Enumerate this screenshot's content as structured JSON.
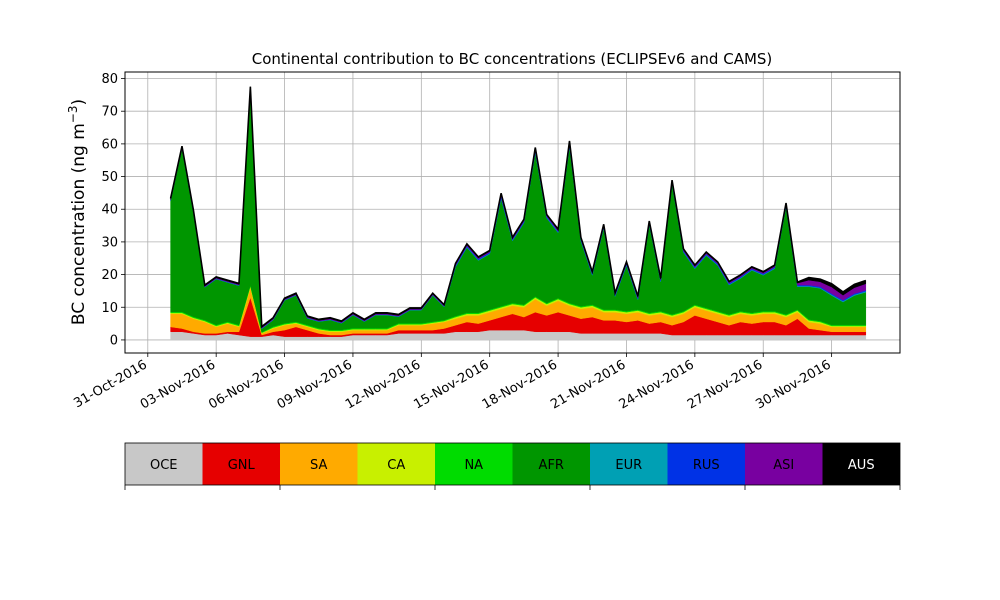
{
  "chart_data": {
    "type": "area",
    "stacked": true,
    "title": "Continental contribution to BC concentrations (ECLIPSEv6 and CAMS)",
    "xlabel": "",
    "ylabel": "BC concentration (ng m",
    "ylabel_superscript": "−3",
    "ylabel_suffix": ")",
    "ylim": [
      -4,
      82
    ],
    "yticks": [
      0,
      10,
      20,
      30,
      40,
      50,
      60,
      70,
      80
    ],
    "x_range": [
      "2016-10-30",
      "2016-12-03"
    ],
    "xtick_dates": [
      "2016-10-31",
      "2016-11-03",
      "2016-11-06",
      "2016-11-09",
      "2016-11-12",
      "2016-11-15",
      "2016-11-18",
      "2016-11-21",
      "2016-11-24",
      "2016-11-27",
      "2016-11-30"
    ],
    "xtick_labels": [
      "31-Oct-2016",
      "03-Nov-2016",
      "06-Nov-2016",
      "09-Nov-2016",
      "12-Nov-2016",
      "15-Nov-2016",
      "18-Nov-2016",
      "21-Nov-2016",
      "24-Nov-2016",
      "27-Nov-2016",
      "30-Nov-2016"
    ],
    "grid": true,
    "x": [
      "2016-11-01",
      "2016-11-01 12:00",
      "2016-11-02",
      "2016-11-02 12:00",
      "2016-11-03",
      "2016-11-03 12:00",
      "2016-11-04",
      "2016-11-04 12:00",
      "2016-11-05",
      "2016-11-05 12:00",
      "2016-11-06",
      "2016-11-06 12:00",
      "2016-11-07",
      "2016-11-07 12:00",
      "2016-11-08",
      "2016-11-08 12:00",
      "2016-11-09",
      "2016-11-09 12:00",
      "2016-11-10",
      "2016-11-10 12:00",
      "2016-11-11",
      "2016-11-11 12:00",
      "2016-11-12",
      "2016-11-12 12:00",
      "2016-11-13",
      "2016-11-13 12:00",
      "2016-11-14",
      "2016-11-14 12:00",
      "2016-11-15",
      "2016-11-15 12:00",
      "2016-11-16",
      "2016-11-16 12:00",
      "2016-11-17",
      "2016-11-17 12:00",
      "2016-11-18",
      "2016-11-18 12:00",
      "2016-11-19",
      "2016-11-19 12:00",
      "2016-11-20",
      "2016-11-20 12:00",
      "2016-11-21",
      "2016-11-21 12:00",
      "2016-11-22",
      "2016-11-22 12:00",
      "2016-11-23",
      "2016-11-23 12:00",
      "2016-11-24",
      "2016-11-24 12:00",
      "2016-11-25",
      "2016-11-25 12:00",
      "2016-11-26",
      "2016-11-26 12:00",
      "2016-11-27",
      "2016-11-27 12:00",
      "2016-11-28",
      "2016-11-28 12:00",
      "2016-11-29",
      "2016-11-29 12:00",
      "2016-11-30",
      "2016-11-30 12:00",
      "2016-12-01",
      "2016-12-01 12:00"
    ],
    "series": [
      {
        "name": "OCE",
        "color": "#c8c8c8",
        "values": [
          2.5,
          2.5,
          2.0,
          1.5,
          1.5,
          2.0,
          1.5,
          1.0,
          1.0,
          1.5,
          1.0,
          1.0,
          1.0,
          1.0,
          1.0,
          1.0,
          1.5,
          1.5,
          1.5,
          1.5,
          2.0,
          2.0,
          2.0,
          2.0,
          2.0,
          2.5,
          2.5,
          2.5,
          3.0,
          3.0,
          3.0,
          3.0,
          2.5,
          2.5,
          2.5,
          2.5,
          2.0,
          2.0,
          2.0,
          2.0,
          2.0,
          2.0,
          2.0,
          2.0,
          1.5,
          1.5,
          1.5,
          1.5,
          1.5,
          1.5,
          1.5,
          1.5,
          1.5,
          1.5,
          1.5,
          1.5,
          1.5,
          1.5,
          1.5,
          1.5,
          1.5,
          1.5
        ]
      },
      {
        "name": "GNL",
        "color": "#e60000",
        "values": [
          1.5,
          1.0,
          0.5,
          0.5,
          0.5,
          0.5,
          1.0,
          12.0,
          0.5,
          1.0,
          2.0,
          3.0,
          2.0,
          1.0,
          0.5,
          0.5,
          0.5,
          0.5,
          0.5,
          0.5,
          1.0,
          1.0,
          1.0,
          1.0,
          1.5,
          2.0,
          3.0,
          2.5,
          3.0,
          4.0,
          5.0,
          4.0,
          6.0,
          5.0,
          6.0,
          5.0,
          4.5,
          5.0,
          4.0,
          4.0,
          3.5,
          4.0,
          3.0,
          3.5,
          3.0,
          4.0,
          6.0,
          5.0,
          4.0,
          3.0,
          4.0,
          3.5,
          4.0,
          4.0,
          3.0,
          5.0,
          2.0,
          1.5,
          1.0,
          1.0,
          1.0,
          1.0
        ]
      },
      {
        "name": "SA",
        "color": "#ffaa00",
        "values": [
          4.0,
          4.5,
          4.0,
          3.5,
          2.0,
          2.5,
          1.5,
          3.0,
          0.5,
          1.0,
          1.5,
          1.0,
          1.0,
          1.0,
          1.0,
          1.0,
          1.0,
          1.0,
          1.0,
          1.0,
          1.5,
          1.5,
          1.5,
          2.0,
          2.0,
          2.0,
          2.0,
          2.5,
          2.5,
          2.5,
          2.5,
          3.0,
          4.0,
          3.0,
          3.5,
          3.0,
          3.0,
          3.0,
          2.5,
          2.5,
          2.5,
          2.5,
          2.5,
          2.5,
          2.5,
          2.5,
          2.5,
          2.5,
          2.5,
          2.5,
          2.5,
          2.5,
          2.5,
          2.5,
          2.5,
          2.0,
          2.0,
          2.0,
          1.5,
          1.5,
          1.5,
          1.5
        ]
      },
      {
        "name": "CA",
        "color": "#c8f000",
        "values": [
          0.3,
          0.3,
          0.3,
          0.3,
          0.3,
          0.3,
          0.3,
          0.5,
          0.2,
          0.3,
          0.3,
          0.3,
          0.3,
          0.3,
          0.3,
          0.3,
          0.3,
          0.3,
          0.3,
          0.3,
          0.3,
          0.3,
          0.3,
          0.3,
          0.3,
          0.5,
          0.5,
          0.5,
          0.5,
          0.5,
          0.5,
          0.5,
          0.5,
          0.5,
          0.5,
          0.5,
          0.5,
          0.5,
          0.5,
          0.5,
          0.5,
          0.5,
          0.5,
          0.5,
          0.5,
          0.5,
          0.5,
          0.5,
          0.5,
          0.5,
          0.5,
          0.5,
          0.5,
          0.5,
          0.5,
          0.5,
          0.5,
          0.5,
          0.3,
          0.3,
          0.3,
          0.3
        ]
      },
      {
        "name": "NA",
        "color": "#00dc00",
        "values": [
          0.3,
          0.3,
          0.3,
          0.3,
          0.3,
          0.3,
          0.3,
          0.3,
          0.2,
          0.3,
          0.3,
          0.3,
          0.3,
          0.3,
          0.3,
          0.3,
          0.3,
          0.3,
          0.3,
          0.3,
          0.3,
          0.3,
          0.3,
          0.3,
          0.3,
          0.3,
          0.3,
          0.3,
          0.3,
          0.3,
          0.3,
          0.3,
          0.3,
          0.3,
          0.3,
          0.3,
          0.3,
          0.3,
          0.3,
          0.3,
          0.3,
          0.3,
          0.3,
          0.3,
          0.3,
          0.3,
          0.3,
          0.3,
          0.3,
          0.3,
          0.3,
          0.3,
          0.3,
          0.3,
          0.3,
          0.3,
          0.3,
          0.3,
          0.3,
          0.3,
          0.3,
          0.3
        ]
      },
      {
        "name": "AFR",
        "color": "#009600",
        "values": [
          34.0,
          50.0,
          32.0,
          10.0,
          14.0,
          12.0,
          12.0,
          60.0,
          1.0,
          2.0,
          7.0,
          8.0,
          2.0,
          2.0,
          3.0,
          2.0,
          4.0,
          2.0,
          4.0,
          4.0,
          2.0,
          4.0,
          4.0,
          8.0,
          4.0,
          15.0,
          20.0,
          16.0,
          17.0,
          33.0,
          19.0,
          25.0,
          44.0,
          26.0,
          20.0,
          48.0,
          20.0,
          9.0,
          25.0,
          4.0,
          14.0,
          3.0,
          27.0,
          9.0,
          40.0,
          18.0,
          11.0,
          16.0,
          14.0,
          9.0,
          10.0,
          13.0,
          11.0,
          13.0,
          33.0,
          7.0,
          10.0,
          10.0,
          9.0,
          7.0,
          9.0,
          10.0
        ]
      },
      {
        "name": "EUR",
        "color": "#00a0b4",
        "values": [
          0.1,
          0.1,
          0.1,
          0.1,
          0.1,
          0.1,
          0.1,
          0.1,
          0.1,
          0.1,
          0.1,
          0.1,
          0.1,
          0.1,
          0.1,
          0.1,
          0.1,
          0.1,
          0.1,
          0.1,
          0.1,
          0.1,
          0.1,
          0.1,
          0.1,
          0.2,
          0.2,
          0.2,
          0.2,
          0.2,
          0.2,
          0.2,
          0.2,
          0.2,
          0.2,
          0.2,
          0.2,
          0.2,
          0.2,
          0.2,
          0.2,
          0.2,
          0.2,
          0.2,
          0.2,
          0.2,
          0.2,
          0.2,
          0.2,
          0.2,
          0.2,
          0.2,
          0.2,
          0.2,
          0.2,
          0.2,
          0.2,
          0.2,
          0.3,
          0.3,
          0.3,
          0.3
        ]
      },
      {
        "name": "RUS",
        "color": "#0032e6",
        "values": [
          0.1,
          0.1,
          0.1,
          0.1,
          0.1,
          0.1,
          0.1,
          0.1,
          0.1,
          0.1,
          0.1,
          0.1,
          0.1,
          0.1,
          0.1,
          0.1,
          0.1,
          0.1,
          0.1,
          0.1,
          0.1,
          0.1,
          0.1,
          0.1,
          0.1,
          0.3,
          0.3,
          0.3,
          0.3,
          0.5,
          0.3,
          0.3,
          0.5,
          0.3,
          0.3,
          0.5,
          0.3,
          0.3,
          0.3,
          0.3,
          0.3,
          0.3,
          0.3,
          0.3,
          0.3,
          0.3,
          0.3,
          0.3,
          0.3,
          0.3,
          0.3,
          0.3,
          0.3,
          0.3,
          0.3,
          0.3,
          0.3,
          0.3,
          0.3,
          0.3,
          0.3,
          0.3
        ]
      },
      {
        "name": "ASI",
        "color": "#7800a0",
        "values": [
          0.2,
          0.2,
          0.2,
          0.2,
          0.2,
          0.2,
          0.2,
          0.2,
          0.2,
          0.2,
          0.2,
          0.2,
          0.2,
          0.2,
          0.2,
          0.2,
          0.2,
          0.2,
          0.2,
          0.2,
          0.2,
          0.2,
          0.2,
          0.2,
          0.2,
          0.3,
          0.3,
          0.3,
          0.3,
          0.6,
          0.3,
          0.3,
          0.6,
          0.3,
          0.3,
          0.6,
          0.3,
          0.3,
          0.3,
          0.3,
          0.3,
          0.3,
          0.3,
          0.3,
          0.3,
          0.3,
          0.3,
          0.3,
          0.3,
          0.3,
          0.3,
          0.3,
          0.3,
          0.3,
          0.3,
          0.6,
          1.5,
          1.5,
          2.0,
          1.5,
          1.8,
          2.0
        ]
      },
      {
        "name": "AUS",
        "color": "#000000",
        "values": [
          0.3,
          0.3,
          0.3,
          0.3,
          0.3,
          0.3,
          0.3,
          0.3,
          0.3,
          0.3,
          0.3,
          0.3,
          0.3,
          0.3,
          0.3,
          0.3,
          0.3,
          0.3,
          0.3,
          0.3,
          0.3,
          0.3,
          0.3,
          0.3,
          0.3,
          0.3,
          0.3,
          0.3,
          0.3,
          0.3,
          0.3,
          0.3,
          0.3,
          0.3,
          0.3,
          0.3,
          0.3,
          0.3,
          0.3,
          0.3,
          0.3,
          0.3,
          0.3,
          0.3,
          0.3,
          0.3,
          0.3,
          0.3,
          0.3,
          0.3,
          0.3,
          0.3,
          0.3,
          0.3,
          0.3,
          0.3,
          0.8,
          0.8,
          1.0,
          1.0,
          1.0,
          1.0
        ]
      }
    ],
    "legend": {
      "placement": "bottom",
      "labels": [
        "OCE",
        "GNL",
        "SA",
        "CA",
        "NA",
        "AFR",
        "EUR",
        "RUS",
        "ASI",
        "AUS"
      ],
      "label_colors": [
        "#000000",
        "#000000",
        "#000000",
        "#000000",
        "#000000",
        "#000000",
        "#000000",
        "#000000",
        "#000000",
        "#ffffff"
      ]
    }
  }
}
